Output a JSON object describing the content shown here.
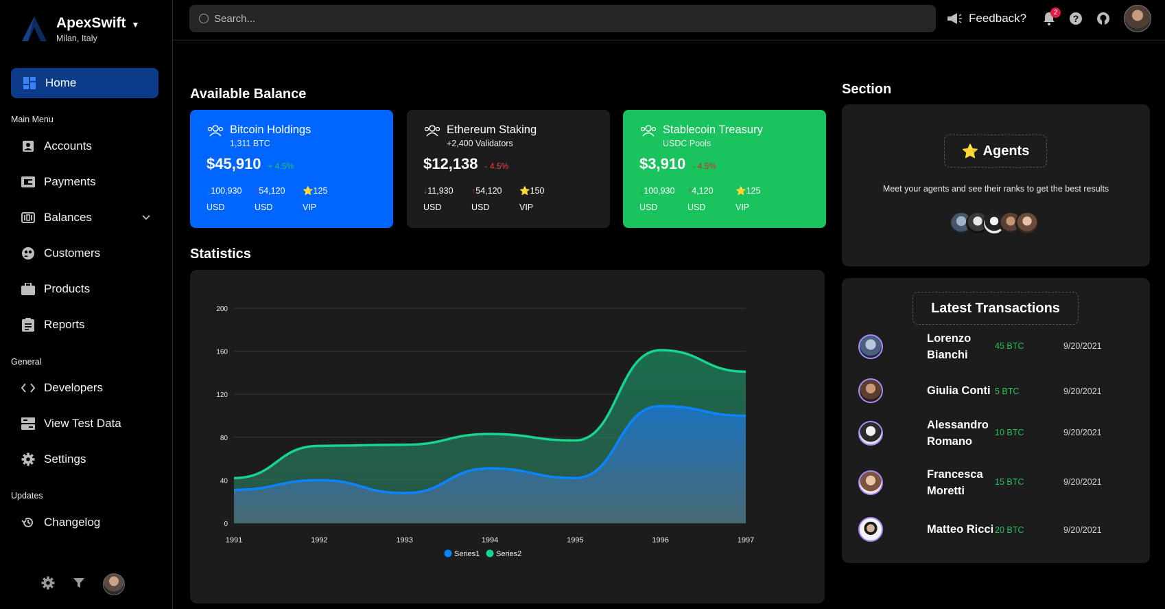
{
  "brand": {
    "name": "ApexSwift",
    "location": "Milan, Italy"
  },
  "sidebar": {
    "home_label": "Home",
    "sections": {
      "main": "Main Menu",
      "general": "General",
      "updates": "Updates"
    },
    "main_items": [
      {
        "label": "Accounts",
        "icon": "account-box-icon"
      },
      {
        "label": "Payments",
        "icon": "payments-icon"
      },
      {
        "label": "Balances",
        "icon": "balances-icon"
      },
      {
        "label": "Customers",
        "icon": "customers-icon"
      },
      {
        "label": "Products",
        "icon": "briefcase-icon"
      },
      {
        "label": "Reports",
        "icon": "clipboard-icon"
      }
    ],
    "general_items": [
      {
        "label": "Developers",
        "icon": "code-icon"
      },
      {
        "label": "View Test Data",
        "icon": "test-data-icon"
      },
      {
        "label": "Settings",
        "icon": "gear-icon"
      }
    ],
    "updates_items": [
      {
        "label": "Changelog",
        "icon": "history-icon"
      }
    ]
  },
  "topbar": {
    "search_placeholder": "Search...",
    "feedback_label": "Feedback?",
    "notification_count": "2"
  },
  "balance": {
    "title": "Available Balance",
    "cards": [
      {
        "title": "Bitcoin Holdings",
        "subtitle": "1,311 BTC",
        "amount": "$45,910",
        "change": "+ 4.5%",
        "stats": [
          [
            "↓100,930",
            "USD"
          ],
          [
            "↑54,120",
            "USD"
          ],
          [
            "⭐125",
            "VIP"
          ]
        ]
      },
      {
        "title": "Ethereum Staking",
        "subtitle": "+2,400 Validators",
        "amount": "$12,138",
        "change": "- 4.5%",
        "stats": [
          [
            "↓11,930",
            "USD"
          ],
          [
            "↑54,120",
            "USD"
          ],
          [
            "⭐150",
            "VIP"
          ]
        ]
      },
      {
        "title": "Stablecoin Treasury",
        "subtitle": "USDC Pools",
        "amount": "$3,910",
        "change": "- 4.5%",
        "stats": [
          [
            "↓100,930",
            "USD"
          ],
          [
            "↑4,120",
            "USD"
          ],
          [
            "⭐125",
            "VIP"
          ]
        ]
      }
    ]
  },
  "statistics_title": "Statistics",
  "chart_data": {
    "type": "area",
    "x": [
      1991,
      1992,
      1993,
      1994,
      1995,
      1996,
      1997
    ],
    "series": [
      {
        "name": "Series1",
        "values": [
          31,
          40,
          28,
          51,
          42,
          109,
          100
        ],
        "color": "#0a84ff"
      },
      {
        "name": "Series2",
        "values": [
          42,
          72,
          73,
          83,
          77,
          161,
          141
        ],
        "color": "#19d48f"
      }
    ],
    "ylim": [
      0,
      200
    ],
    "yticks": [
      0,
      40,
      80,
      120,
      160,
      200
    ],
    "legend": "bottom"
  },
  "section_panel": {
    "title": "Section",
    "agents_label": "Agents",
    "agents_star": "⭐",
    "description": "Meet your agents and see their ranks to get the best results"
  },
  "transactions": {
    "title": "Latest Transactions",
    "rows": [
      {
        "name": "Lorenzo Bianchi",
        "amount": "45 BTC",
        "date": "9/20/2021"
      },
      {
        "name": "Giulia Conti",
        "amount": "5 BTC",
        "date": "9/20/2021"
      },
      {
        "name": "Alessandro Romano",
        "amount": "10 BTC",
        "date": "9/20/2021"
      },
      {
        "name": "Francesca Moretti",
        "amount": "15 BTC",
        "date": "9/20/2021"
      },
      {
        "name": "Matteo Ricci",
        "amount": "20 BTC",
        "date": "9/20/2021"
      }
    ]
  }
}
